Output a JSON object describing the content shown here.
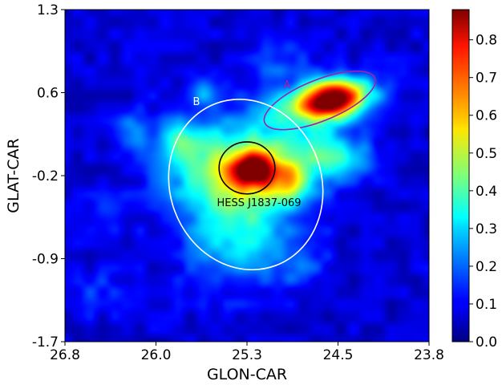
{
  "chart_data": {
    "type": "heatmap",
    "xlabel": "GLON-CAR",
    "ylabel": "GLAT-CAR",
    "x_ticks": [
      "26.8",
      "26.0",
      "25.3",
      "24.5",
      "23.8"
    ],
    "y_ticks": [
      "1.3",
      "0.6",
      "-0.2",
      "-0.9",
      "-1.7"
    ],
    "xlim": [
      26.8,
      23.8
    ],
    "ylim": [
      -1.7,
      1.3
    ],
    "colormap": "jet",
    "colorbar": {
      "range": [
        0.0,
        0.88
      ],
      "ticks": [
        "0.0",
        "0.1",
        "0.2",
        "0.3",
        "0.4",
        "0.5",
        "0.6",
        "0.7",
        "0.8"
      ]
    },
    "blobs": [
      {
        "glon": 24.62,
        "glat": 0.48,
        "amp": 0.62,
        "sx": 0.16,
        "sy": 0.11
      },
      {
        "glon": 24.45,
        "glat": 0.55,
        "amp": 0.3,
        "sx": 0.2,
        "sy": 0.12
      },
      {
        "glon": 24.85,
        "glat": 0.42,
        "amp": 0.22,
        "sx": 0.22,
        "sy": 0.12
      },
      {
        "glon": 25.25,
        "glat": -0.15,
        "amp": 0.5,
        "sx": 0.11,
        "sy": 0.1
      },
      {
        "glon": 25.3,
        "glat": -0.15,
        "amp": 0.28,
        "sx": 0.24,
        "sy": 0.22
      },
      {
        "glon": 24.95,
        "glat": -0.25,
        "amp": 0.28,
        "sx": 0.12,
        "sy": 0.12
      },
      {
        "glon": 25.35,
        "glat": -0.65,
        "amp": 0.26,
        "sx": 0.32,
        "sy": 0.35
      },
      {
        "glon": 25.7,
        "glat": -0.05,
        "amp": 0.22,
        "sx": 0.28,
        "sy": 0.3
      },
      {
        "glon": 24.9,
        "glat": 0.05,
        "amp": 0.24,
        "sx": 0.3,
        "sy": 0.26
      },
      {
        "glon": 24.6,
        "glat": -0.05,
        "amp": 0.14,
        "sx": 0.15,
        "sy": 0.15
      },
      {
        "glon": 25.65,
        "glat": 0.55,
        "amp": 0.15,
        "sx": 0.1,
        "sy": 0.1
      },
      {
        "glon": 26.25,
        "glat": 0.2,
        "amp": 0.14,
        "sx": 0.1,
        "sy": 0.1
      },
      {
        "glon": 25.85,
        "glat": 0.12,
        "amp": 0.15,
        "sx": 0.1,
        "sy": 0.1
      },
      {
        "glon": 24.35,
        "glat": -0.05,
        "amp": 0.12,
        "sx": 0.12,
        "sy": 0.1
      },
      {
        "glon": 25.05,
        "glat": 0.85,
        "amp": 0.1,
        "sx": 0.18,
        "sy": 0.16
      },
      {
        "glon": 24.85,
        "glat": -1.0,
        "amp": 0.1,
        "sx": 0.15,
        "sy": 0.12
      },
      {
        "glon": 26.55,
        "glat": -1.25,
        "amp": 0.08,
        "sx": 0.15,
        "sy": 0.15
      },
      {
        "glon": 26.45,
        "glat": -0.5,
        "amp": 0.08,
        "sx": 0.12,
        "sy": 0.12
      }
    ],
    "regions": [
      {
        "label": "A",
        "glon": 24.7,
        "glat": 0.48,
        "width": 0.98,
        "height": 0.37,
        "angle": 22,
        "color": "#a020a8"
      },
      {
        "label": "B",
        "glon": 25.31,
        "glat": -0.28,
        "width": 1.25,
        "height": 1.56,
        "angle": 0,
        "rot_deg": -20,
        "color": "#ffffff"
      },
      {
        "label": "HESS J1837-069",
        "glon": 25.3,
        "glat": -0.13,
        "width": 0.46,
        "height": 0.47,
        "angle": 0,
        "color": "#000000"
      }
    ]
  }
}
